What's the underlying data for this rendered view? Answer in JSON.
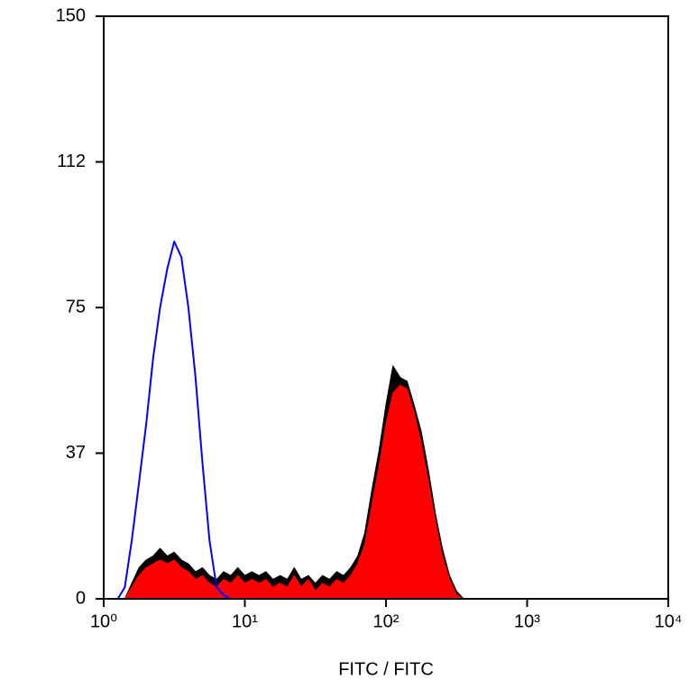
{
  "chart_data": {
    "type": "histogram-overlay",
    "x_label": "FITC / FITC",
    "xscale": "log",
    "xlim": [
      1,
      10000
    ],
    "xticks": [
      {
        "value": 1,
        "label": "10⁰"
      },
      {
        "value": 10,
        "label": "10¹"
      },
      {
        "value": 100,
        "label": "10²"
      },
      {
        "value": 1000,
        "label": "10³"
      },
      {
        "value": 10000,
        "label": "10⁴"
      }
    ],
    "ylim": [
      0,
      150
    ],
    "yticks": [
      0,
      {
        "value": 37.5,
        "label": "37"
      },
      75,
      {
        "value": 112.5,
        "label": "112"
      },
      150
    ],
    "x": [
      1.26,
      1.41,
      1.58,
      1.78,
      2.0,
      2.24,
      2.51,
      2.82,
      3.16,
      3.55,
      3.98,
      4.47,
      5.01,
      5.62,
      6.31,
      7.08,
      7.94,
      8.91,
      10,
      11.2,
      12.6,
      14.1,
      15.8,
      17.8,
      20,
      22.4,
      25.1,
      28.2,
      31.6,
      35.5,
      39.8,
      44.7,
      50.1,
      56.2,
      63.1,
      70.8,
      79.4,
      89.1,
      100,
      112,
      126,
      141,
      158,
      178,
      200,
      224,
      251,
      282,
      316,
      355,
      398,
      447,
      501
    ],
    "series": [
      {
        "color": "#000000",
        "style": "filled",
        "values": [
          0,
          0,
          4,
          8,
          10,
          11,
          13,
          11,
          12,
          10,
          9,
          7,
          8,
          6,
          5,
          7,
          6,
          8,
          6,
          7,
          6,
          7,
          5,
          6,
          5,
          8,
          5,
          6,
          4,
          6,
          5,
          7,
          6,
          8,
          11,
          17,
          28,
          38,
          50,
          60,
          57,
          56,
          50,
          43,
          33,
          22,
          13,
          6,
          2,
          0,
          0,
          0,
          0
        ]
      },
      {
        "color": "#ff0000",
        "style": "filled",
        "values": [
          0,
          0,
          3,
          6,
          8,
          9,
          10,
          9,
          10,
          8,
          7,
          5,
          6,
          4,
          3,
          5,
          4,
          6,
          4,
          5,
          4,
          5,
          3,
          4,
          3,
          6,
          3,
          5,
          2,
          4,
          3,
          5,
          4,
          6,
          9,
          14,
          24,
          34,
          45,
          53,
          55,
          54,
          48,
          40,
          30,
          20,
          11,
          5,
          1,
          0,
          0,
          0,
          0
        ]
      },
      {
        "color": "#0000ff",
        "style": "outline",
        "values": [
          0,
          3,
          15,
          30,
          45,
          62,
          75,
          85,
          92,
          88,
          75,
          57,
          35,
          15,
          3,
          1,
          0,
          0,
          0,
          0,
          0,
          0,
          0,
          0,
          0,
          0,
          0,
          0,
          0,
          0,
          0,
          0,
          0,
          0,
          0,
          0,
          0,
          0,
          0,
          0,
          0,
          0,
          0,
          0,
          0,
          0,
          0,
          0,
          0,
          0,
          0,
          0,
          0
        ]
      }
    ]
  }
}
